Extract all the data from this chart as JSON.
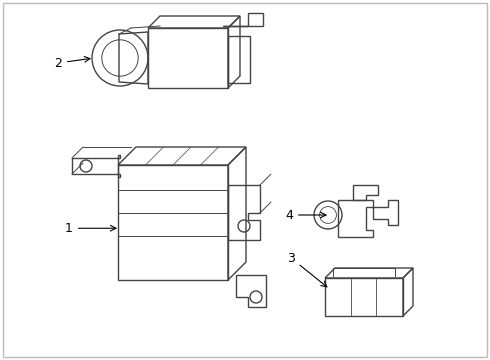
{
  "background_color": "#ffffff",
  "border_color": "#bbbbbb",
  "line_color": "#444444",
  "label_color": "#000000",
  "fig_w": 4.9,
  "fig_h": 3.6,
  "dpi": 100
}
